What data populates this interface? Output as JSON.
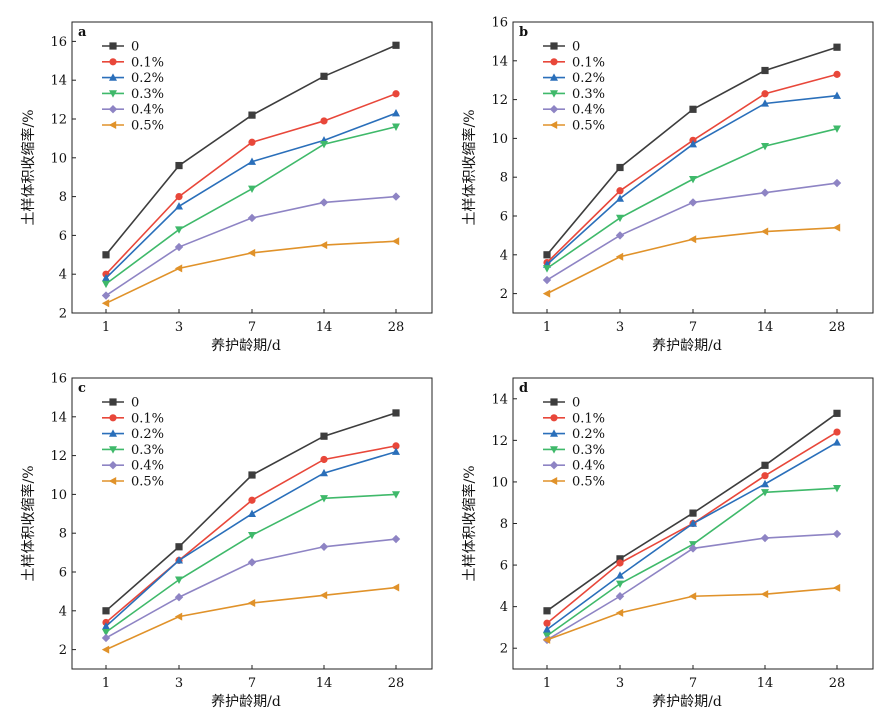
{
  "chart_data": [
    {
      "type": "line",
      "panel_label": "a",
      "categories": [
        "1",
        "3",
        "7",
        "14",
        "28"
      ],
      "xlabel": "养护龄期/d",
      "ylabel": "土样体积收缩率/%",
      "ylim": [
        2,
        17
      ],
      "yticks": [
        2,
        4,
        6,
        8,
        10,
        12,
        14,
        16
      ],
      "legend_position": "top-left",
      "series": [
        {
          "name": "0",
          "color": "#3d3d3d",
          "marker": "square",
          "values": [
            5.0,
            9.6,
            12.2,
            14.2,
            15.8
          ]
        },
        {
          "name": "0.1%",
          "color": "#e8473a",
          "marker": "circle",
          "values": [
            4.0,
            8.0,
            10.8,
            11.9,
            13.3
          ]
        },
        {
          "name": "0.2%",
          "color": "#2a6fba",
          "marker": "triangle-up",
          "values": [
            3.8,
            7.5,
            9.8,
            10.9,
            12.3
          ]
        },
        {
          "name": "0.3%",
          "color": "#3fb96a",
          "marker": "triangle-down",
          "values": [
            3.5,
            6.3,
            8.4,
            10.7,
            11.6
          ]
        },
        {
          "name": "0.4%",
          "color": "#8e84c4",
          "marker": "diamond",
          "values": [
            2.9,
            5.4,
            6.9,
            7.7,
            8.0
          ]
        },
        {
          "name": "0.5%",
          "color": "#e0922a",
          "marker": "triangle-left",
          "values": [
            2.5,
            4.3,
            5.1,
            5.5,
            5.7
          ]
        }
      ]
    },
    {
      "type": "line",
      "panel_label": "b",
      "categories": [
        "1",
        "3",
        "7",
        "14",
        "28"
      ],
      "xlabel": "养护龄期/d",
      "ylabel": "土样体积收缩率/%",
      "ylim": [
        1,
        16
      ],
      "yticks": [
        2,
        4,
        6,
        8,
        10,
        12,
        14,
        16
      ],
      "legend_position": "top-left",
      "series": [
        {
          "name": "0",
          "color": "#3d3d3d",
          "marker": "square",
          "values": [
            4.0,
            8.5,
            11.5,
            13.5,
            14.7
          ]
        },
        {
          "name": "0.1%",
          "color": "#e8473a",
          "marker": "circle",
          "values": [
            3.6,
            7.3,
            9.9,
            12.3,
            13.3
          ]
        },
        {
          "name": "0.2%",
          "color": "#2a6fba",
          "marker": "triangle-up",
          "values": [
            3.5,
            6.9,
            9.7,
            11.8,
            12.2
          ]
        },
        {
          "name": "0.3%",
          "color": "#3fb96a",
          "marker": "triangle-down",
          "values": [
            3.3,
            5.9,
            7.9,
            9.6,
            10.5
          ]
        },
        {
          "name": "0.4%",
          "color": "#8e84c4",
          "marker": "diamond",
          "values": [
            2.7,
            5.0,
            6.7,
            7.2,
            7.7
          ]
        },
        {
          "name": "0.5%",
          "color": "#e0922a",
          "marker": "triangle-left",
          "values": [
            2.0,
            3.9,
            4.8,
            5.2,
            5.4
          ]
        }
      ]
    },
    {
      "type": "line",
      "panel_label": "c",
      "categories": [
        "1",
        "3",
        "7",
        "14",
        "28"
      ],
      "xlabel": "养护龄期/d",
      "ylabel": "土样体积收缩率/%",
      "ylim": [
        1,
        16
      ],
      "yticks": [
        2,
        4,
        6,
        8,
        10,
        12,
        14,
        16
      ],
      "legend_position": "top-left",
      "series": [
        {
          "name": "0",
          "color": "#3d3d3d",
          "marker": "square",
          "values": [
            4.0,
            7.3,
            11.0,
            13.0,
            14.2
          ]
        },
        {
          "name": "0.1%",
          "color": "#e8473a",
          "marker": "circle",
          "values": [
            3.4,
            6.6,
            9.7,
            11.8,
            12.5
          ]
        },
        {
          "name": "0.2%",
          "color": "#2a6fba",
          "marker": "triangle-up",
          "values": [
            3.2,
            6.6,
            9.0,
            11.1,
            12.2
          ]
        },
        {
          "name": "0.3%",
          "color": "#3fb96a",
          "marker": "triangle-down",
          "values": [
            2.9,
            5.6,
            7.9,
            9.8,
            10.0
          ]
        },
        {
          "name": "0.4%",
          "color": "#8e84c4",
          "marker": "diamond",
          "values": [
            2.6,
            4.7,
            6.5,
            7.3,
            7.7
          ]
        },
        {
          "name": "0.5%",
          "color": "#e0922a",
          "marker": "triangle-left",
          "values": [
            2.0,
            3.7,
            4.4,
            4.8,
            5.2
          ]
        }
      ]
    },
    {
      "type": "line",
      "panel_label": "d",
      "categories": [
        "1",
        "3",
        "7",
        "14",
        "28"
      ],
      "xlabel": "养护龄期/d",
      "ylabel": "土样体积收缩率/%",
      "ylim": [
        1,
        15
      ],
      "yticks": [
        2,
        4,
        6,
        8,
        10,
        12,
        14
      ],
      "legend_position": "top-left",
      "series": [
        {
          "name": "0",
          "color": "#3d3d3d",
          "marker": "square",
          "values": [
            3.8,
            6.3,
            8.5,
            10.8,
            13.3
          ]
        },
        {
          "name": "0.1%",
          "color": "#e8473a",
          "marker": "circle",
          "values": [
            3.2,
            6.1,
            8.0,
            10.3,
            12.4
          ]
        },
        {
          "name": "0.2%",
          "color": "#2a6fba",
          "marker": "triangle-up",
          "values": [
            2.9,
            5.5,
            8.0,
            9.9,
            11.9
          ]
        },
        {
          "name": "0.3%",
          "color": "#3fb96a",
          "marker": "triangle-down",
          "values": [
            2.6,
            5.1,
            7.0,
            9.5,
            9.7
          ]
        },
        {
          "name": "0.4%",
          "color": "#8e84c4",
          "marker": "diamond",
          "values": [
            2.4,
            4.5,
            6.8,
            7.3,
            7.5
          ]
        },
        {
          "name": "0.5%",
          "color": "#e0922a",
          "marker": "triangle-left",
          "values": [
            2.4,
            3.7,
            4.5,
            4.6,
            4.9
          ]
        }
      ]
    }
  ]
}
